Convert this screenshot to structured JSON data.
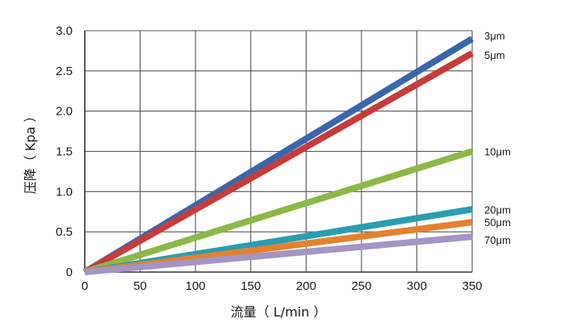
{
  "chart_data": {
    "type": "line",
    "title": "",
    "xlabel": "流量（ L/min ）",
    "ylabel": "压降（ Kpa ）",
    "xlim": [
      0,
      350
    ],
    "ylim": [
      0,
      3.0
    ],
    "x_ticks": [
      "0",
      "50",
      "100",
      "150",
      "200",
      "250",
      "300",
      "350"
    ],
    "y_ticks": [
      "0",
      "0.5",
      "1.0",
      "1.5",
      "2.0",
      "2.5",
      "3.0"
    ],
    "grid": true,
    "legend": "labels at right end of each line",
    "series": [
      {
        "name": "3μm",
        "color": "#3a66ab",
        "points": [
          [
            0,
            0
          ],
          [
            350,
            2.9
          ]
        ]
      },
      {
        "name": "5μm",
        "color": "#c63c3a",
        "points": [
          [
            0,
            0
          ],
          [
            350,
            2.72
          ]
        ]
      },
      {
        "name": "10μm",
        "color": "#8db848",
        "points": [
          [
            0,
            0
          ],
          [
            350,
            1.5
          ]
        ]
      },
      {
        "name": "20μm",
        "color": "#2a9db0",
        "points": [
          [
            0,
            0
          ],
          [
            350,
            0.78
          ]
        ]
      },
      {
        "name": "50μm",
        "color": "#e4812f",
        "points": [
          [
            0,
            0
          ],
          [
            350,
            0.62
          ]
        ]
      },
      {
        "name": "70μm",
        "color": "#a395c4",
        "points": [
          [
            0,
            0
          ],
          [
            350,
            0.44
          ]
        ]
      }
    ]
  }
}
